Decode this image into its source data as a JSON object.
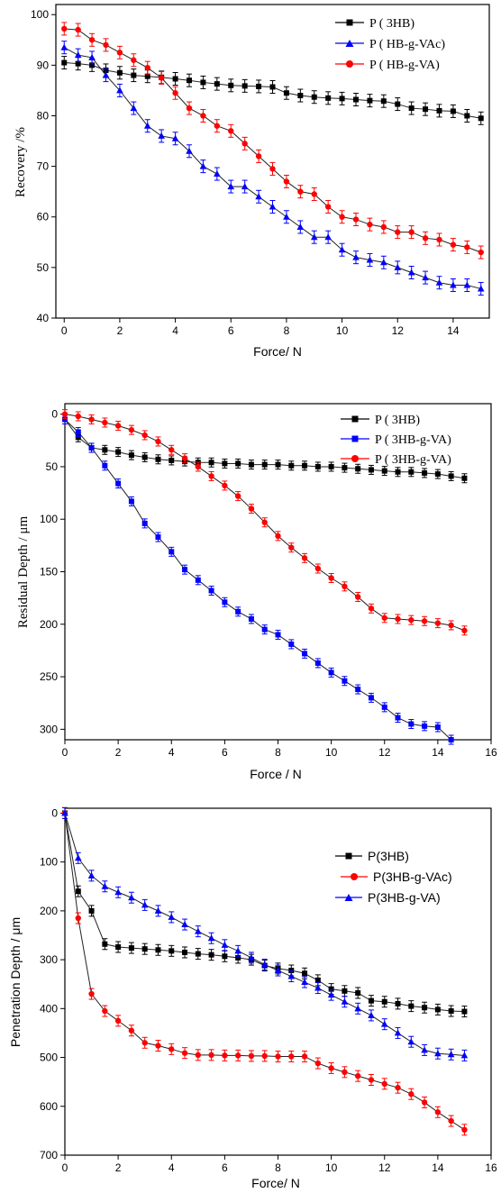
{
  "chart_data": [
    {
      "type": "line",
      "xlabel": "Force/ N",
      "ylabel": "Recovery /%",
      "xlim": [
        -0.3,
        15.3
      ],
      "ylim": [
        40,
        102
      ],
      "xticks": [
        0,
        2,
        4,
        6,
        8,
        10,
        12,
        14
      ],
      "yticks": [
        40,
        50,
        60,
        70,
        80,
        90,
        100
      ],
      "legend_position": "top-right",
      "series": [
        {
          "name": "P(3HB)",
          "color": "#000000",
          "marker": "square",
          "x": [
            0,
            0.5,
            1,
            1.5,
            2,
            2.5,
            3,
            3.5,
            4,
            4.5,
            5,
            5.5,
            6,
            6.5,
            7,
            7.5,
            8,
            8.5,
            9,
            9.5,
            10,
            10.5,
            11,
            11.5,
            12,
            12.5,
            13,
            13.5,
            14,
            14.5,
            15
          ],
          "y": [
            90.5,
            90.3,
            90,
            89,
            88.5,
            88,
            87.8,
            87.6,
            87.3,
            87,
            86.6,
            86.3,
            86,
            85.9,
            85.8,
            85.7,
            84.5,
            84,
            83.7,
            83.5,
            83.4,
            83.2,
            83,
            82.9,
            82.3,
            81.5,
            81.3,
            81,
            80.9,
            80,
            79.5
          ]
        },
        {
          "name": "P(HB-g-VAc)",
          "color": "#0000ff",
          "marker": "triangle",
          "x": [
            0,
            0.5,
            1,
            1.5,
            2,
            2.5,
            3,
            3.5,
            4,
            4.5,
            5,
            5.5,
            6,
            6.5,
            7,
            7.5,
            8,
            8.5,
            9,
            9.5,
            10,
            10.5,
            11,
            11.5,
            12,
            12.5,
            13,
            13.5,
            14,
            14.5,
            15
          ],
          "y": [
            93.5,
            92,
            91.5,
            88,
            85,
            81.5,
            78,
            76,
            75.5,
            73,
            70,
            68.5,
            66,
            66,
            64,
            62,
            60,
            58,
            56,
            56,
            53.5,
            52,
            51.5,
            51,
            50,
            49,
            48,
            47,
            46.5,
            46.5,
            45.8
          ]
        },
        {
          "name": "P(HB-g-VA)",
          "color": "#ff0000",
          "marker": "circle",
          "x": [
            0,
            0.5,
            1,
            1.5,
            2,
            2.5,
            3,
            3.5,
            4,
            4.5,
            5,
            5.5,
            6,
            6.5,
            7,
            7.5,
            8,
            8.5,
            9,
            9.5,
            10,
            10.5,
            11,
            11.5,
            12,
            12.5,
            13,
            13.5,
            14,
            14.5,
            15
          ],
          "y": [
            97.2,
            97,
            95,
            94,
            92.5,
            91,
            89.5,
            87.5,
            84.5,
            81.5,
            80,
            78,
            77,
            74.5,
            72,
            69.5,
            67,
            65,
            64.5,
            62,
            60,
            59.5,
            58.5,
            58,
            57,
            57,
            55.8,
            55.5,
            54.5,
            54,
            53
          ]
        }
      ],
      "legend": [
        "P ( 3HB)",
        "P ( HB-g-VAc)",
        "P ( HB-g-VA)"
      ]
    },
    {
      "type": "line",
      "xlabel": "Force / N",
      "ylabel": "Residual Depth / μm",
      "xlim": [
        0,
        16
      ],
      "ylim": [
        310,
        -10
      ],
      "y_inverted": true,
      "xticks": [
        0,
        2,
        4,
        6,
        8,
        10,
        12,
        14,
        16
      ],
      "yticks": [
        0,
        50,
        100,
        150,
        200,
        250,
        300
      ],
      "legend_position": "top-right",
      "series": [
        {
          "name": "P(3HB)",
          "color": "#000000",
          "marker": "square",
          "x": [
            0,
            0.5,
            1,
            1.5,
            2,
            2.5,
            3,
            3.5,
            4,
            4.5,
            5,
            5.5,
            6,
            6.5,
            7,
            7.5,
            8,
            8.5,
            9,
            9.5,
            10,
            10.5,
            11,
            11.5,
            12,
            12.5,
            13,
            13.5,
            14,
            14.5,
            15
          ],
          "y": [
            5,
            22,
            32,
            34,
            36,
            39,
            41,
            43,
            44,
            45,
            46,
            46,
            47,
            47,
            48,
            48,
            48,
            49,
            49,
            50,
            50,
            51,
            52,
            53,
            54,
            55,
            55,
            56,
            57,
            59,
            61
          ]
        },
        {
          "name": "P(3HB-g-VA)",
          "color": "#0000ff",
          "marker": "square",
          "x": [
            0,
            0.5,
            1,
            1.5,
            2,
            2.5,
            3,
            3.5,
            4,
            4.5,
            5,
            5.5,
            6,
            6.5,
            7,
            7.5,
            8,
            8.5,
            9,
            9.5,
            10,
            10.5,
            11,
            11.5,
            12,
            12.5,
            13,
            13.5,
            14,
            14.5
          ],
          "y": [
            5,
            17,
            32,
            49,
            66,
            83,
            104,
            117,
            131,
            148,
            158,
            168,
            179,
            188,
            195,
            205,
            210,
            219,
            228,
            237,
            246,
            254,
            262,
            270,
            279,
            289,
            295,
            297,
            298,
            310
          ]
        },
        {
          "name": "P(3HB-g-VA)",
          "color": "#ff0000",
          "marker": "circle",
          "x": [
            0,
            0.5,
            1,
            1.5,
            2,
            2.5,
            3,
            3.5,
            4,
            4.5,
            5,
            5.5,
            6,
            6.5,
            7,
            7.5,
            8,
            8.5,
            9,
            9.5,
            10,
            10.5,
            11,
            11.5,
            12,
            12.5,
            13,
            13.5,
            14,
            14.5,
            15
          ],
          "y": [
            0,
            2,
            5,
            8,
            11,
            15,
            20,
            26,
            34,
            42,
            50,
            59,
            68,
            78,
            90,
            103,
            116,
            127,
            137,
            147,
            156,
            164,
            174,
            185,
            194,
            195,
            196,
            197,
            199,
            201,
            206
          ]
        }
      ],
      "legend": [
        "P ( 3HB)",
        "P ( 3HB-g-VA)",
        "P ( 3HB-g-VA)"
      ]
    },
    {
      "type": "line",
      "xlabel": "Force/ N",
      "ylabel": "Penetration Depth / μm",
      "xlim": [
        0,
        16
      ],
      "ylim": [
        700,
        -10
      ],
      "y_inverted": true,
      "xticks": [
        0,
        2,
        4,
        6,
        8,
        10,
        12,
        14,
        16
      ],
      "yticks": [
        0,
        100,
        200,
        300,
        400,
        500,
        600,
        700
      ],
      "legend_position": "top-right",
      "series": [
        {
          "name": "P(3HB)",
          "color": "#000000",
          "marker": "square",
          "x": [
            0,
            0.5,
            1,
            1.5,
            2,
            2.5,
            3,
            3.5,
            4,
            4.5,
            5,
            5.5,
            6,
            6.5,
            7,
            7.5,
            8,
            8.5,
            9,
            9.5,
            10,
            10.5,
            11,
            11.5,
            12,
            12.5,
            13,
            13.5,
            14,
            14.5,
            15
          ],
          "y": [
            0,
            160,
            200,
            268,
            274,
            276,
            278,
            280,
            282,
            285,
            288,
            290,
            293,
            296,
            300,
            312,
            318,
            322,
            328,
            342,
            360,
            364,
            368,
            384,
            386,
            390,
            395,
            398,
            402,
            405,
            406
          ]
        },
        {
          "name": "P(3HB-g-VAc)",
          "color": "#ff0000",
          "marker": "circle",
          "x": [
            0,
            0.5,
            1,
            1.5,
            2,
            2.5,
            3,
            3.5,
            4,
            4.5,
            5,
            5.5,
            6,
            6.5,
            7,
            7.5,
            8,
            8.5,
            9,
            9.5,
            10,
            10.5,
            11,
            11.5,
            12,
            12.5,
            13,
            13.5,
            14,
            14.5,
            15
          ],
          "y": [
            0,
            215,
            370,
            405,
            425,
            445,
            470,
            476,
            483,
            491,
            495,
            495,
            496,
            496,
            497,
            497,
            498,
            498,
            498,
            512,
            522,
            530,
            538,
            546,
            554,
            562,
            575,
            592,
            612,
            630,
            648
          ]
        },
        {
          "name": "P(3HB-g-VA)",
          "color": "#0000ff",
          "marker": "triangle",
          "x": [
            0,
            0.5,
            1,
            1.5,
            2,
            2.5,
            3,
            3.5,
            4,
            4.5,
            5,
            5.5,
            6,
            6.5,
            7,
            7.5,
            8,
            8.5,
            9,
            9.5,
            10,
            10.5,
            11,
            11.5,
            12,
            12.5,
            13,
            13.5,
            14,
            14.5,
            15
          ],
          "y": [
            0,
            92,
            128,
            150,
            162,
            173,
            188,
            200,
            213,
            228,
            242,
            256,
            270,
            282,
            296,
            310,
            322,
            334,
            346,
            358,
            372,
            386,
            400,
            414,
            432,
            450,
            468,
            485,
            492,
            494,
            496
          ]
        }
      ],
      "legend": [
        "P(3HB)",
        "P(3HB-g-VAc)",
        "P(3HB-g-VA)"
      ]
    }
  ]
}
